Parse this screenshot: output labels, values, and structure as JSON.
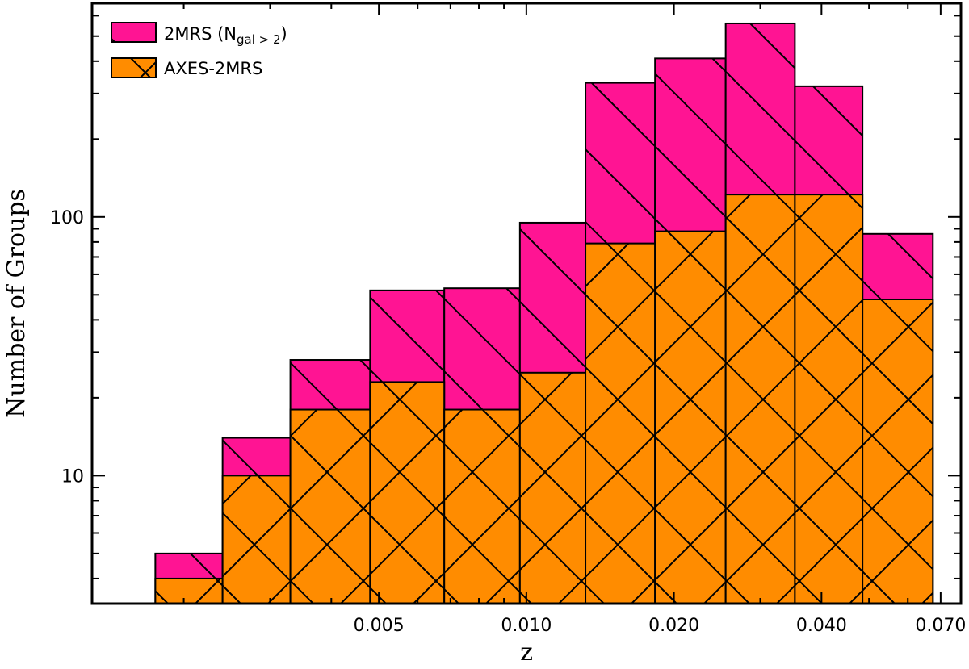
{
  "chart_data": {
    "type": "bar",
    "subtype": "stacked-overlay-histogram",
    "xlabel": "z",
    "ylabel": "Number of Groups",
    "xscale": "log",
    "yscale": "log",
    "xlim": [
      0.0013,
      0.077
    ],
    "ylim": [
      3.2,
      670
    ],
    "x_ticks": [
      0.005,
      0.01,
      0.02,
      0.04,
      0.07
    ],
    "x_tick_labels": [
      "0.005",
      "0.010",
      "0.020",
      "0.040",
      "0.070"
    ],
    "y_ticks": [
      10,
      100
    ],
    "y_tick_labels": [
      "10",
      "100"
    ],
    "bin_edges": [
      0.00175,
      0.0024,
      0.0033,
      0.0048,
      0.0068,
      0.0097,
      0.0132,
      0.0183,
      0.0255,
      0.0353,
      0.0485,
      0.0675
    ],
    "series": [
      {
        "name": "2MRS (N",
        "name_sub": "gal > 2",
        "name_close": ")",
        "values": [
          5,
          14,
          28,
          52,
          53,
          95,
          330,
          410,
          560,
          320,
          86
        ],
        "color": "#ff1493",
        "hatch": "diagonal"
      },
      {
        "name": "AXES-2MRS",
        "values": [
          4,
          10,
          18,
          23,
          18,
          25,
          79,
          88,
          122,
          122,
          48
        ],
        "color": "#ff8c00",
        "hatch": "cross"
      }
    ],
    "legend_position": "top-left",
    "grid": false
  }
}
